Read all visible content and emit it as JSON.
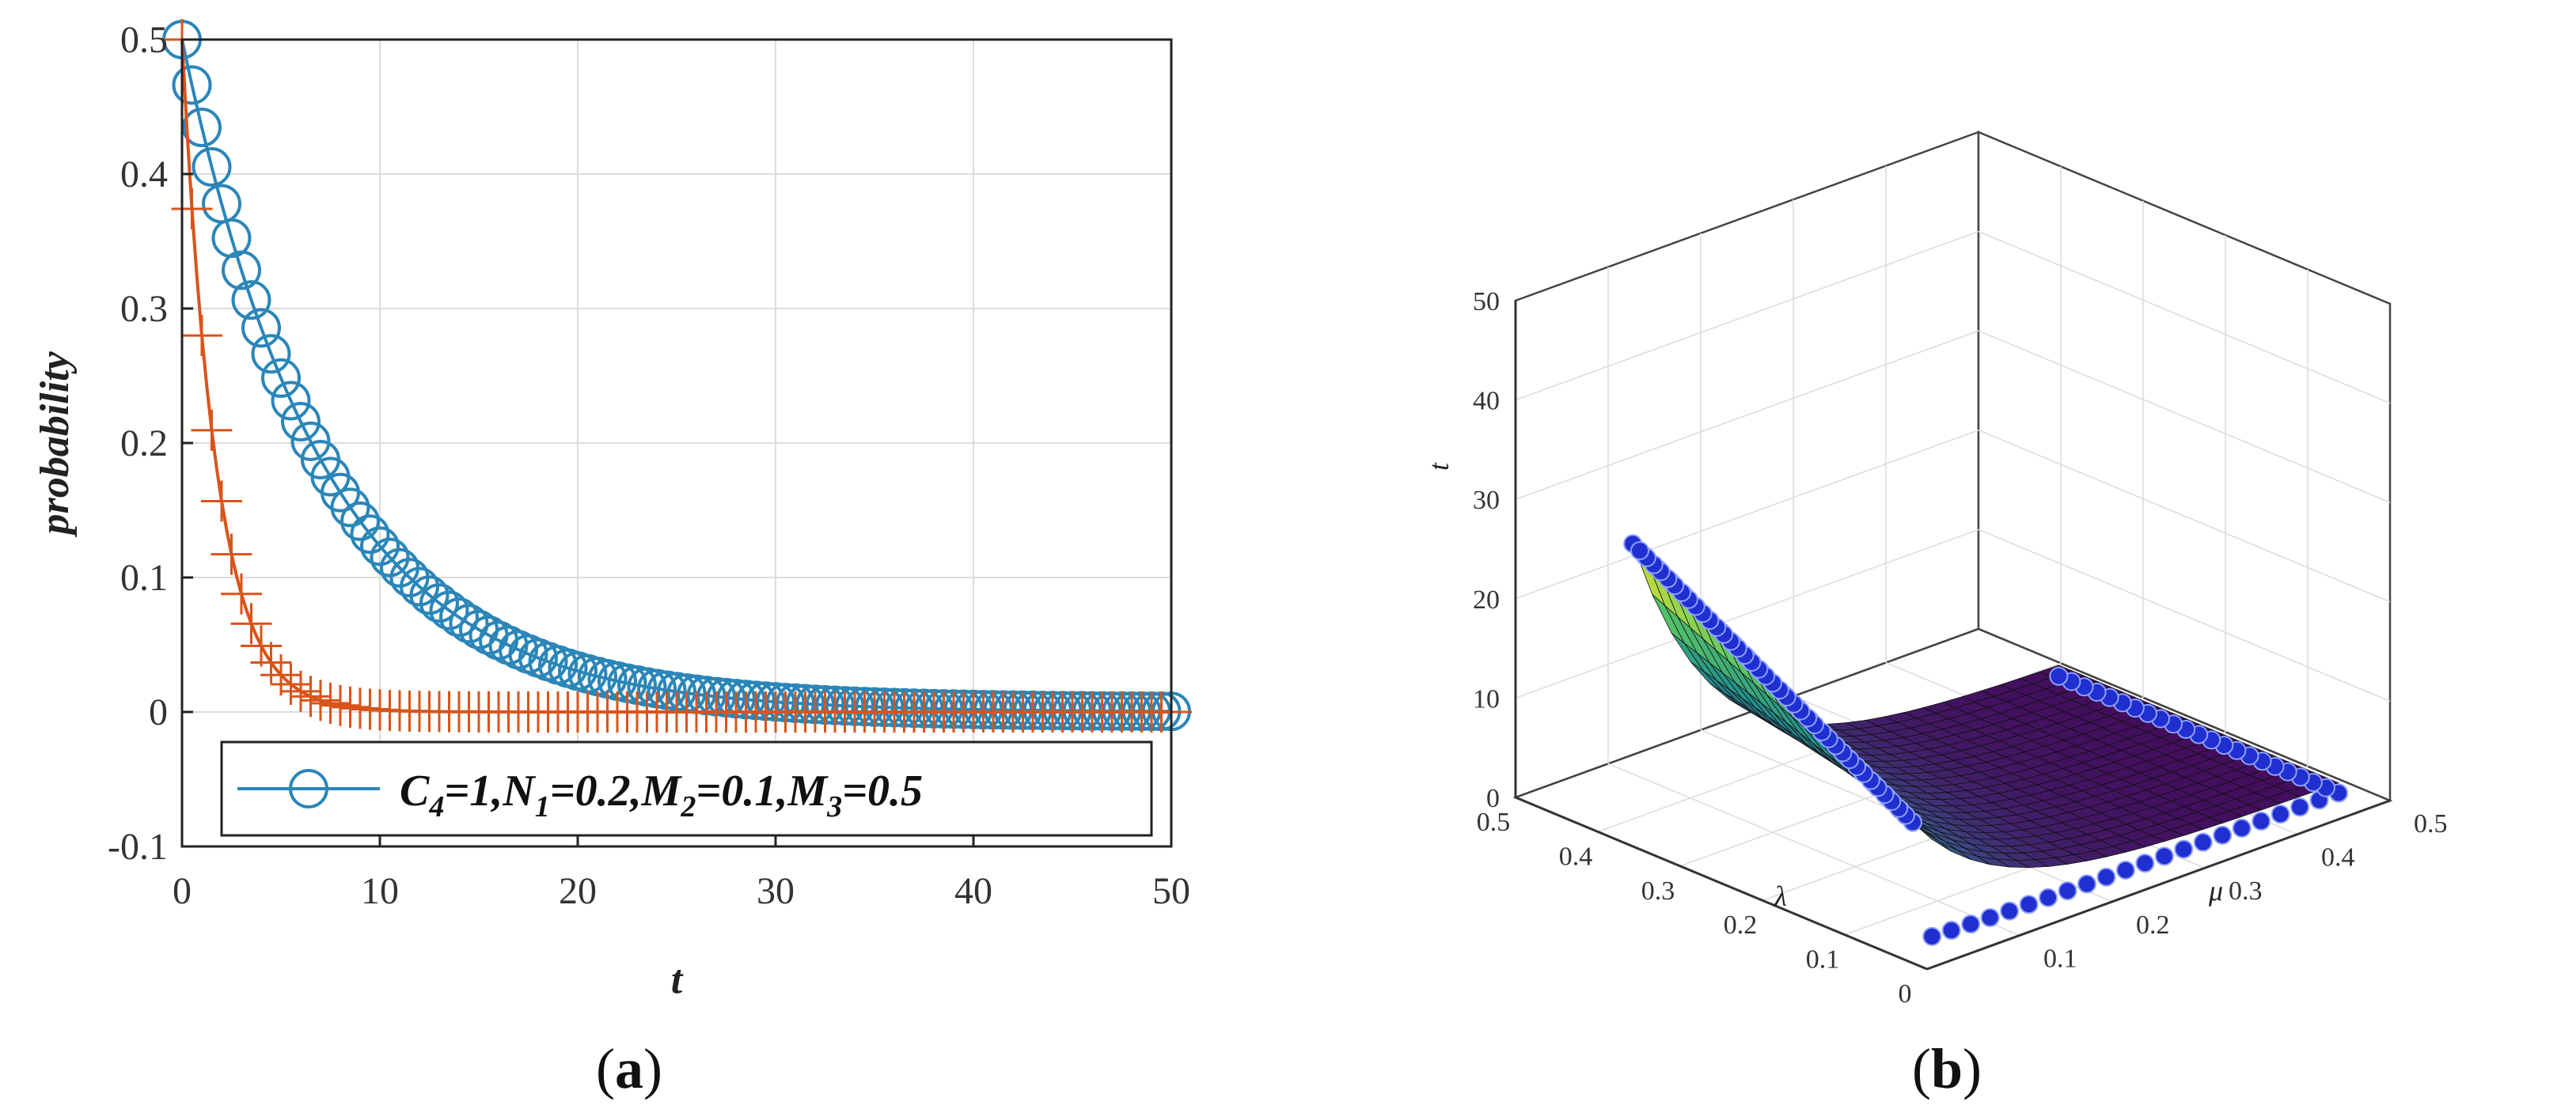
{
  "chart_data": [
    {
      "panel": "a",
      "panel_label": "a",
      "type": "line",
      "xlabel": "t",
      "ylabel": "probability",
      "xlim": [
        0,
        50
      ],
      "ylim": [
        -0.1,
        0.5
      ],
      "xticks": [
        0,
        10,
        20,
        30,
        40,
        50
      ],
      "xtick_labels": [
        "0",
        "10",
        "20",
        "30",
        "40",
        "50"
      ],
      "yticks": [
        -0.1,
        0,
        0.1,
        0.2,
        0.3,
        0.4,
        0.5
      ],
      "ytick_labels": [
        "-0.1",
        "0",
        "0.1",
        "0.2",
        "0.3",
        "0.4",
        "0.5"
      ],
      "grid": true,
      "legend": {
        "placement": "bottom",
        "entries": [
          "C4=1,N1=0.2,M2=0.1,M3=0.5"
        ]
      },
      "series": [
        {
          "name": "C4=1,N1=0.2,M2=0.1,M3=0.5",
          "marker": "circle",
          "color": "#2b86b8",
          "model": {
            "form": "a*exp(-k*t)",
            "a": 0.5,
            "k": 0.14
          },
          "x_samples": [
            0,
            0.5,
            1,
            2,
            3,
            5,
            10,
            15,
            20,
            25,
            30,
            40,
            50
          ],
          "y_samples": [
            0.5,
            0.466,
            0.435,
            0.378,
            0.329,
            0.248,
            0.123,
            0.061,
            0.03,
            0.015,
            0.007,
            0.002,
            0.0
          ]
        },
        {
          "marker": "plus",
          "color": "#d9541a",
          "model": {
            "form": "a*exp(-k*t)",
            "a": 0.5,
            "k": 0.58
          },
          "x_samples": [
            0,
            0.5,
            1,
            1.5,
            2,
            3,
            4,
            5,
            6,
            8,
            10,
            20,
            50
          ],
          "y_samples": [
            0.5,
            0.374,
            0.28,
            0.209,
            0.157,
            0.088,
            0.049,
            0.028,
            0.015,
            0.005,
            0.002,
            0.0,
            0.0
          ]
        }
      ]
    },
    {
      "panel": "b",
      "panel_label": "b",
      "type": "surface3d",
      "xlabel": "μ",
      "ylabel": "λ",
      "zlabel": "t",
      "xlim": [
        0,
        0.5
      ],
      "ylim": [
        0,
        0.5
      ],
      "zlim": [
        0,
        50
      ],
      "xtick_labels": [
        "0.1",
        "0.2",
        "0.3",
        "0.4",
        "0.5"
      ],
      "ytick_labels": [
        "0",
        "0.1",
        "0.2",
        "0.3",
        "0.4",
        "0.5"
      ],
      "ztick_labels": [
        "0",
        "10",
        "20",
        "30",
        "40",
        "50"
      ],
      "grid": true,
      "surface_colormap": [
        "#440154",
        "#3b528b",
        "#21918c",
        "#5ec962",
        "#fde725"
      ],
      "marker_color": "#1f2fd0",
      "surface_notes": {
        "peak_t": 29,
        "peak_region": "small μ, moderate λ",
        "baseline_t": 1
      }
    }
  ]
}
